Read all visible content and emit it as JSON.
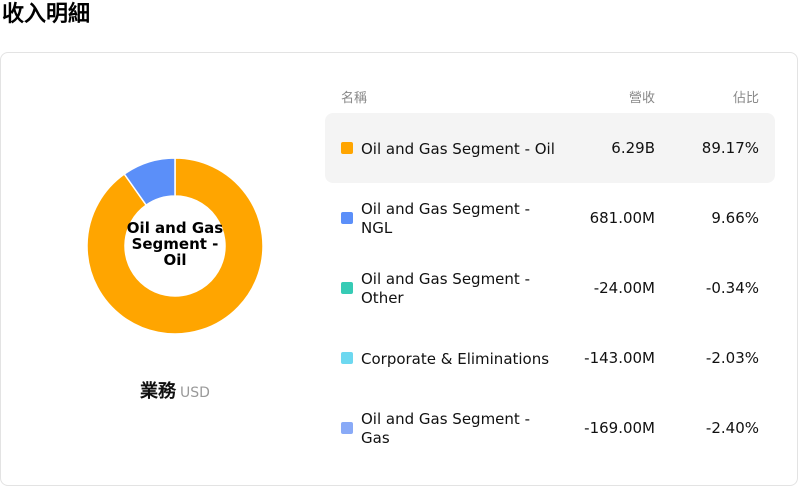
{
  "page": {
    "title": "收入明細"
  },
  "chart": {
    "center_label": "Oil and Gas Segment - Oil",
    "caption_label": "業務",
    "caption_unit": "USD"
  },
  "table": {
    "headers": {
      "name": "名稱",
      "revenue": "營收",
      "share": "佔比"
    },
    "rows": [
      {
        "name": "Oil and Gas Segment - Oil",
        "revenue": "6.29B",
        "share": "89.17%",
        "color": "#ffa500",
        "selected": true
      },
      {
        "name": "Oil and Gas Segment - NGL",
        "revenue": "681.00M",
        "share": "9.66%",
        "color": "#5b8ff9",
        "selected": false
      },
      {
        "name": "Oil and Gas Segment - Other",
        "revenue": "-24.00M",
        "share": "-0.34%",
        "color": "#36cbb5",
        "selected": false
      },
      {
        "name": "Corporate & Eliminations",
        "revenue": "-143.00M",
        "share": "-2.03%",
        "color": "#6dd8f0",
        "selected": false
      },
      {
        "name": "Oil and Gas Segment - Gas",
        "revenue": "-169.00M",
        "share": "-2.40%",
        "color": "#89aaf7",
        "selected": false
      }
    ]
  },
  "chart_data": {
    "type": "pie",
    "categories": [
      "Oil and Gas Segment - Oil",
      "Oil and Gas Segment - NGL",
      "Oil and Gas Segment - Other",
      "Corporate & Eliminations",
      "Oil and Gas Segment - Gas"
    ],
    "values": [
      6290000000,
      681000000,
      -24000000,
      -143000000,
      -169000000
    ],
    "shares_percent": [
      89.17,
      9.66,
      -0.34,
      -2.03,
      -2.4
    ],
    "colors": [
      "#ffa500",
      "#5b8ff9",
      "#36cbb5",
      "#6dd8f0",
      "#89aaf7"
    ],
    "donut": true
  }
}
